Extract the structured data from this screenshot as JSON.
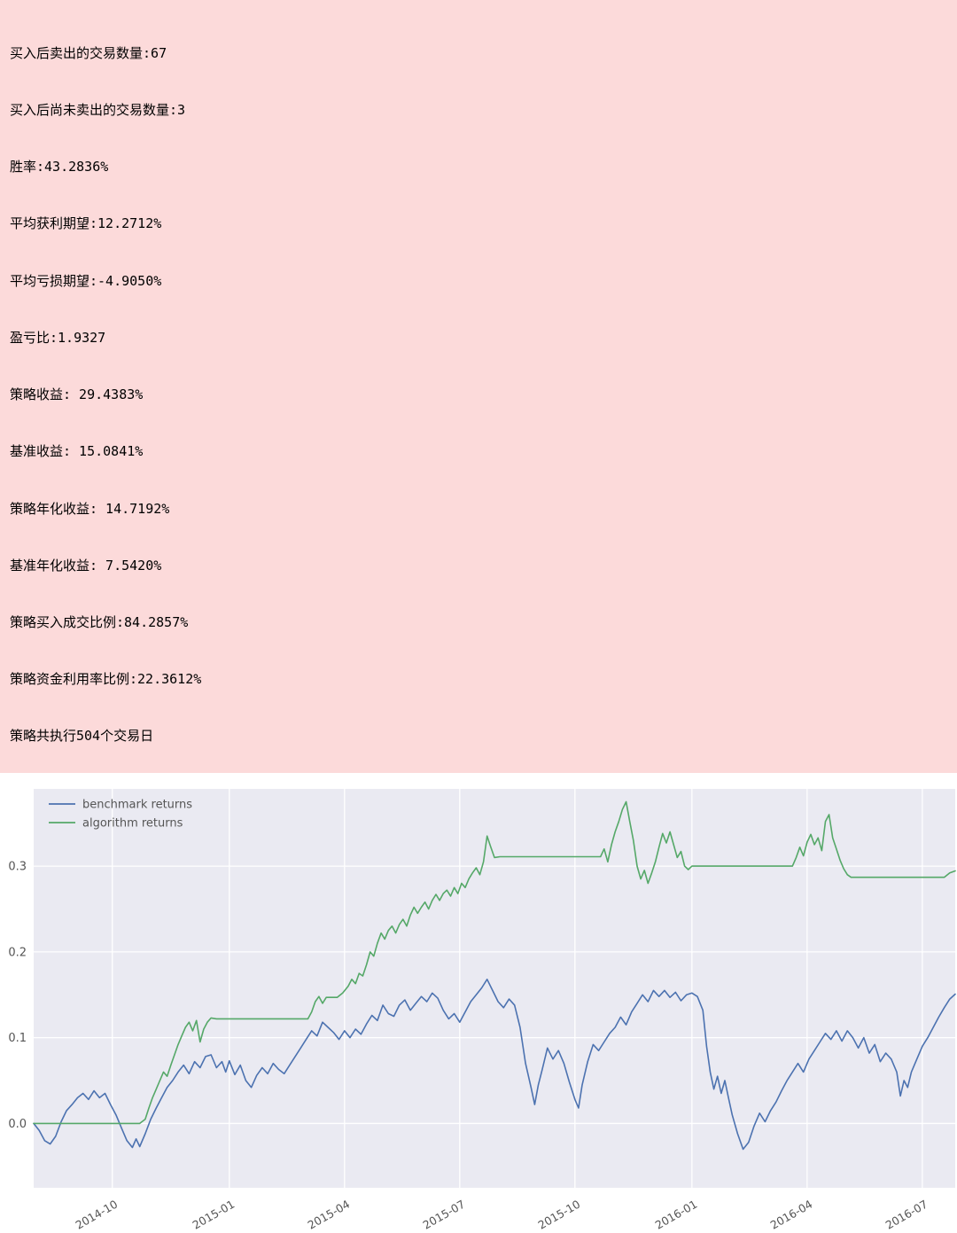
{
  "stats_panel": {
    "bg_color": "#fcdada",
    "lines": [
      "买入后卖出的交易数量:67",
      "买入后尚未卖出的交易数量:3",
      "胜率:43.2836%",
      "平均获利期望:12.2712%",
      "平均亏损期望:-4.9050%",
      "盈亏比:1.9327",
      "策略收益: 29.4383%",
      "基准收益: 15.0841%",
      "策略年化收益: 14.7192%",
      "基准年化收益: 7.5420%",
      "策略买入成交比例:84.2857%",
      "策略资金利用率比例:22.3612%",
      "策略共执行504个交易日"
    ]
  },
  "chart_data": {
    "type": "line",
    "title": "",
    "xlabel": "",
    "ylabel": "",
    "plot_bg": "#eaeaf2",
    "grid_color": "#ffffff",
    "tick_color": "#555555",
    "grid": true,
    "legend_position": "top-left",
    "xlim": [
      0,
      504
    ],
    "ylim": [
      -0.075,
      0.39
    ],
    "y_ticks": [
      0.0,
      0.1,
      0.2,
      0.3
    ],
    "x_tick_days": [
      43,
      107,
      170,
      233,
      296,
      360,
      423,
      486
    ],
    "x_tick_labels": [
      "2014-10",
      "2015-01",
      "2015-04",
      "2015-07",
      "2015-10",
      "2016-01",
      "2016-04",
      "2016-07"
    ],
    "series": [
      {
        "name": "benchmark returns",
        "color": "#4c72b0",
        "points": [
          [
            0,
            0.0
          ],
          [
            3,
            -0.008
          ],
          [
            6,
            -0.02
          ],
          [
            9,
            -0.024
          ],
          [
            12,
            -0.015
          ],
          [
            15,
            0.002
          ],
          [
            18,
            0.015
          ],
          [
            21,
            0.022
          ],
          [
            24,
            0.03
          ],
          [
            27,
            0.035
          ],
          [
            30,
            0.028
          ],
          [
            33,
            0.038
          ],
          [
            36,
            0.03
          ],
          [
            39,
            0.035
          ],
          [
            42,
            0.022
          ],
          [
            45,
            0.01
          ],
          [
            48,
            -0.005
          ],
          [
            51,
            -0.02
          ],
          [
            54,
            -0.028
          ],
          [
            56,
            -0.018
          ],
          [
            58,
            -0.027
          ],
          [
            61,
            -0.012
          ],
          [
            64,
            0.005
          ],
          [
            67,
            0.018
          ],
          [
            70,
            0.03
          ],
          [
            73,
            0.042
          ],
          [
            76,
            0.05
          ],
          [
            79,
            0.06
          ],
          [
            82,
            0.068
          ],
          [
            85,
            0.058
          ],
          [
            88,
            0.072
          ],
          [
            91,
            0.065
          ],
          [
            94,
            0.078
          ],
          [
            97,
            0.08
          ],
          [
            100,
            0.065
          ],
          [
            103,
            0.072
          ],
          [
            105,
            0.06
          ],
          [
            107,
            0.073
          ],
          [
            110,
            0.057
          ],
          [
            113,
            0.068
          ],
          [
            116,
            0.05
          ],
          [
            119,
            0.042
          ],
          [
            122,
            0.056
          ],
          [
            125,
            0.065
          ],
          [
            128,
            0.058
          ],
          [
            131,
            0.07
          ],
          [
            134,
            0.063
          ],
          [
            137,
            0.058
          ],
          [
            140,
            0.068
          ],
          [
            143,
            0.078
          ],
          [
            146,
            0.088
          ],
          [
            149,
            0.098
          ],
          [
            152,
            0.108
          ],
          [
            155,
            0.102
          ],
          [
            158,
            0.118
          ],
          [
            161,
            0.112
          ],
          [
            164,
            0.106
          ],
          [
            167,
            0.098
          ],
          [
            170,
            0.108
          ],
          [
            173,
            0.1
          ],
          [
            176,
            0.11
          ],
          [
            179,
            0.104
          ],
          [
            182,
            0.116
          ],
          [
            185,
            0.126
          ],
          [
            188,
            0.12
          ],
          [
            191,
            0.138
          ],
          [
            194,
            0.128
          ],
          [
            197,
            0.125
          ],
          [
            200,
            0.138
          ],
          [
            203,
            0.144
          ],
          [
            206,
            0.132
          ],
          [
            209,
            0.14
          ],
          [
            212,
            0.148
          ],
          [
            215,
            0.142
          ],
          [
            218,
            0.152
          ],
          [
            221,
            0.146
          ],
          [
            224,
            0.132
          ],
          [
            227,
            0.122
          ],
          [
            230,
            0.128
          ],
          [
            233,
            0.118
          ],
          [
            236,
            0.13
          ],
          [
            239,
            0.142
          ],
          [
            242,
            0.15
          ],
          [
            245,
            0.158
          ],
          [
            248,
            0.168
          ],
          [
            251,
            0.155
          ],
          [
            254,
            0.142
          ],
          [
            257,
            0.135
          ],
          [
            260,
            0.145
          ],
          [
            263,
            0.138
          ],
          [
            266,
            0.112
          ],
          [
            269,
            0.07
          ],
          [
            272,
            0.042
          ],
          [
            274,
            0.022
          ],
          [
            276,
            0.045
          ],
          [
            278,
            0.062
          ],
          [
            281,
            0.088
          ],
          [
            284,
            0.075
          ],
          [
            287,
            0.085
          ],
          [
            290,
            0.07
          ],
          [
            293,
            0.048
          ],
          [
            296,
            0.028
          ],
          [
            298,
            0.018
          ],
          [
            300,
            0.045
          ],
          [
            303,
            0.072
          ],
          [
            306,
            0.092
          ],
          [
            309,
            0.085
          ],
          [
            312,
            0.095
          ],
          [
            315,
            0.105
          ],
          [
            318,
            0.112
          ],
          [
            321,
            0.124
          ],
          [
            324,
            0.115
          ],
          [
            327,
            0.13
          ],
          [
            330,
            0.14
          ],
          [
            333,
            0.15
          ],
          [
            336,
            0.142
          ],
          [
            339,
            0.155
          ],
          [
            342,
            0.148
          ],
          [
            345,
            0.155
          ],
          [
            348,
            0.147
          ],
          [
            351,
            0.153
          ],
          [
            354,
            0.143
          ],
          [
            357,
            0.15
          ],
          [
            360,
            0.152
          ],
          [
            363,
            0.148
          ],
          [
            366,
            0.132
          ],
          [
            368,
            0.09
          ],
          [
            370,
            0.06
          ],
          [
            372,
            0.04
          ],
          [
            374,
            0.055
          ],
          [
            376,
            0.035
          ],
          [
            378,
            0.05
          ],
          [
            380,
            0.03
          ],
          [
            382,
            0.01
          ],
          [
            385,
            -0.012
          ],
          [
            388,
            -0.03
          ],
          [
            391,
            -0.022
          ],
          [
            394,
            -0.003
          ],
          [
            397,
            0.012
          ],
          [
            400,
            0.002
          ],
          [
            403,
            0.015
          ],
          [
            406,
            0.025
          ],
          [
            409,
            0.038
          ],
          [
            412,
            0.05
          ],
          [
            415,
            0.06
          ],
          [
            418,
            0.07
          ],
          [
            421,
            0.06
          ],
          [
            424,
            0.075
          ],
          [
            427,
            0.085
          ],
          [
            430,
            0.095
          ],
          [
            433,
            0.105
          ],
          [
            436,
            0.098
          ],
          [
            439,
            0.108
          ],
          [
            442,
            0.096
          ],
          [
            445,
            0.108
          ],
          [
            448,
            0.1
          ],
          [
            451,
            0.088
          ],
          [
            454,
            0.1
          ],
          [
            457,
            0.082
          ],
          [
            460,
            0.092
          ],
          [
            463,
            0.072
          ],
          [
            466,
            0.082
          ],
          [
            469,
            0.075
          ],
          [
            472,
            0.06
          ],
          [
            474,
            0.032
          ],
          [
            476,
            0.05
          ],
          [
            478,
            0.042
          ],
          [
            480,
            0.06
          ],
          [
            483,
            0.075
          ],
          [
            486,
            0.09
          ],
          [
            489,
            0.1
          ],
          [
            492,
            0.112
          ],
          [
            495,
            0.124
          ],
          [
            498,
            0.135
          ],
          [
            501,
            0.145
          ],
          [
            504,
            0.1508
          ]
        ]
      },
      {
        "name": "algorithm returns",
        "color": "#55a868",
        "points": [
          [
            0,
            0.0
          ],
          [
            58,
            0.0
          ],
          [
            61,
            0.005
          ],
          [
            63,
            0.018
          ],
          [
            65,
            0.03
          ],
          [
            67,
            0.04
          ],
          [
            69,
            0.05
          ],
          [
            71,
            0.06
          ],
          [
            73,
            0.055
          ],
          [
            75,
            0.068
          ],
          [
            77,
            0.08
          ],
          [
            79,
            0.092
          ],
          [
            81,
            0.102
          ],
          [
            83,
            0.112
          ],
          [
            85,
            0.118
          ],
          [
            87,
            0.108
          ],
          [
            89,
            0.12
          ],
          [
            91,
            0.095
          ],
          [
            93,
            0.11
          ],
          [
            95,
            0.118
          ],
          [
            97,
            0.123
          ],
          [
            100,
            0.122
          ],
          [
            150,
            0.122
          ],
          [
            152,
            0.13
          ],
          [
            154,
            0.142
          ],
          [
            156,
            0.148
          ],
          [
            158,
            0.14
          ],
          [
            160,
            0.147
          ],
          [
            166,
            0.147
          ],
          [
            169,
            0.152
          ],
          [
            172,
            0.16
          ],
          [
            174,
            0.168
          ],
          [
            176,
            0.163
          ],
          [
            178,
            0.175
          ],
          [
            180,
            0.172
          ],
          [
            182,
            0.185
          ],
          [
            184,
            0.2
          ],
          [
            186,
            0.195
          ],
          [
            188,
            0.21
          ],
          [
            190,
            0.222
          ],
          [
            192,
            0.215
          ],
          [
            194,
            0.225
          ],
          [
            196,
            0.23
          ],
          [
            198,
            0.222
          ],
          [
            200,
            0.232
          ],
          [
            202,
            0.238
          ],
          [
            204,
            0.23
          ],
          [
            206,
            0.243
          ],
          [
            208,
            0.252
          ],
          [
            210,
            0.245
          ],
          [
            212,
            0.252
          ],
          [
            214,
            0.258
          ],
          [
            216,
            0.25
          ],
          [
            218,
            0.26
          ],
          [
            220,
            0.267
          ],
          [
            222,
            0.26
          ],
          [
            224,
            0.268
          ],
          [
            226,
            0.272
          ],
          [
            228,
            0.265
          ],
          [
            230,
            0.275
          ],
          [
            232,
            0.268
          ],
          [
            234,
            0.28
          ],
          [
            236,
            0.275
          ],
          [
            238,
            0.285
          ],
          [
            240,
            0.292
          ],
          [
            242,
            0.298
          ],
          [
            244,
            0.29
          ],
          [
            246,
            0.305
          ],
          [
            248,
            0.335
          ],
          [
            250,
            0.322
          ],
          [
            252,
            0.31
          ],
          [
            255,
            0.311
          ],
          [
            310,
            0.311
          ],
          [
            312,
            0.32
          ],
          [
            314,
            0.305
          ],
          [
            316,
            0.325
          ],
          [
            318,
            0.34
          ],
          [
            320,
            0.352
          ],
          [
            322,
            0.366
          ],
          [
            324,
            0.375
          ],
          [
            326,
            0.352
          ],
          [
            328,
            0.33
          ],
          [
            330,
            0.3
          ],
          [
            332,
            0.285
          ],
          [
            334,
            0.295
          ],
          [
            336,
            0.28
          ],
          [
            338,
            0.292
          ],
          [
            340,
            0.305
          ],
          [
            342,
            0.322
          ],
          [
            344,
            0.338
          ],
          [
            346,
            0.327
          ],
          [
            348,
            0.34
          ],
          [
            350,
            0.325
          ],
          [
            352,
            0.31
          ],
          [
            354,
            0.317
          ],
          [
            356,
            0.3
          ],
          [
            358,
            0.296
          ],
          [
            360,
            0.3
          ],
          [
            415,
            0.3
          ],
          [
            417,
            0.31
          ],
          [
            419,
            0.322
          ],
          [
            421,
            0.312
          ],
          [
            423,
            0.328
          ],
          [
            425,
            0.337
          ],
          [
            427,
            0.325
          ],
          [
            429,
            0.333
          ],
          [
            431,
            0.318
          ],
          [
            433,
            0.352
          ],
          [
            435,
            0.36
          ],
          [
            437,
            0.333
          ],
          [
            439,
            0.32
          ],
          [
            441,
            0.307
          ],
          [
            443,
            0.297
          ],
          [
            445,
            0.29
          ],
          [
            447,
            0.287
          ],
          [
            498,
            0.287
          ],
          [
            501,
            0.292
          ],
          [
            504,
            0.2944
          ]
        ]
      }
    ]
  }
}
